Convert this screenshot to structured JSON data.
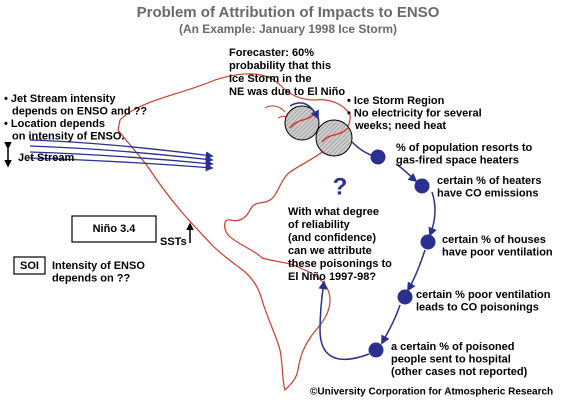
{
  "header": {
    "title": "Problem of Attribution of Impacts to ENSO",
    "subtitle": "(An Example: January 1998 Ice Storm)"
  },
  "forecaster": {
    "lines": [
      "Forecaster: 60%",
      "probability that this",
      "Ice Storm in the",
      "NE was due to El Niño"
    ]
  },
  "jet_stream": {
    "notes": [
      "• Jet Stream intensity",
      "depends on ENSO and ??",
      "• Location depends",
      "on intensity of ENSO."
    ],
    "label": "Jet Stream"
  },
  "ice_storm": {
    "lines": [
      "• Ice Storm Region",
      "• No electricity for several",
      "weeks; need heat"
    ]
  },
  "chain": {
    "nodes": [
      {
        "lines": [
          "% of population resorts to",
          "gas-fired space heaters"
        ]
      },
      {
        "lines": [
          "certain % of heaters",
          "have CO emissions"
        ]
      },
      {
        "lines": [
          "certain % of houses",
          "have poor ventilation"
        ]
      },
      {
        "lines": [
          "certain % poor ventilation",
          "leads to CO poisonings"
        ]
      },
      {
        "lines": [
          "a certain % of poisoned",
          "people sent to hospital",
          "(other cases not reported)"
        ]
      }
    ]
  },
  "question": {
    "mark": "?",
    "lines": [
      "With what degree",
      "of reliability",
      "(and confidence)",
      "can we attribute",
      "these poisonings to",
      "El Niño 1997-98?"
    ]
  },
  "indices": {
    "nino_box": "Niño 3.4",
    "ssts": "SSTs",
    "soi_box": "SOI",
    "soi_lines": [
      "Intensity of ENSO",
      "depends on ??"
    ]
  },
  "footer": "©University Corporation for Atmospheric Research"
}
